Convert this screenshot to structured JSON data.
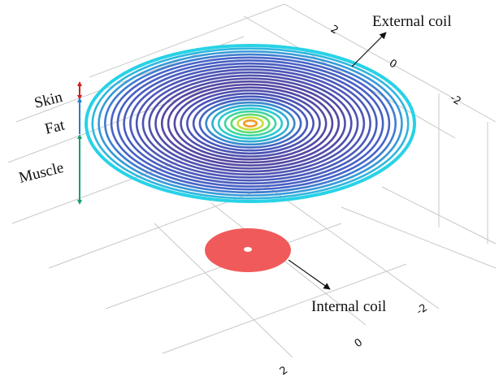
{
  "labels": {
    "external_coil": "External coil",
    "internal_coil": "Internal coil"
  },
  "layers": [
    "Skin",
    "Fat",
    "Muscle"
  ],
  "axis_ticks": {
    "back": [
      "2",
      "0",
      "-2"
    ],
    "front": [
      "-2",
      "0",
      "2"
    ]
  }
}
